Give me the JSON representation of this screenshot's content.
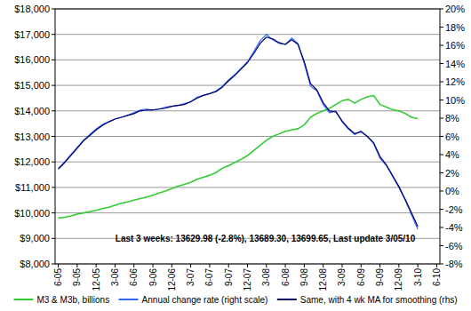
{
  "chart_data": {
    "type": "line",
    "categories": [
      "6-05",
      null,
      null,
      "9-05",
      null,
      null,
      "12-05",
      null,
      null,
      "3-06",
      null,
      null,
      "6-06",
      null,
      null,
      "9-06",
      null,
      null,
      "12-06",
      null,
      null,
      "3-07",
      null,
      null,
      "6-07",
      null,
      null,
      "9-07",
      null,
      null,
      "12-07",
      null,
      null,
      "3-08",
      null,
      null,
      "6-08",
      null,
      null,
      "9-08",
      null,
      null,
      "12-08",
      null,
      null,
      "3-09",
      null,
      null,
      "6-09",
      null,
      null,
      "9-09",
      null,
      null,
      "12-09",
      null,
      null,
      "3-10",
      null,
      null,
      "6-10"
    ],
    "series": [
      {
        "name": "M3 & M3b, billions",
        "color": "#33cc33",
        "values": [
          9800,
          9830,
          9880,
          9950,
          10000,
          10050,
          10100,
          10170,
          10220,
          10300,
          10380,
          10430,
          10500,
          10560,
          10620,
          10690,
          10780,
          10860,
          10950,
          11050,
          11120,
          11200,
          11320,
          11400,
          11480,
          11580,
          11750,
          11850,
          11980,
          12100,
          12250,
          12450,
          12650,
          12850,
          13000,
          13100,
          13200,
          13250,
          13300,
          13450,
          13750,
          13900,
          14000,
          14100,
          14250,
          14400,
          14450,
          14300,
          14450,
          14550,
          14600,
          14250,
          14150,
          14050,
          14000,
          13900,
          13750,
          13700,
          null,
          null,
          null
        ]
      },
      {
        "name": "Annual change rate (right scale)",
        "color": "#3366ff",
        "axis": "y2",
        "values": [
          2.5,
          3.2,
          4.0,
          4.8,
          5.6,
          6.2,
          6.8,
          7.3,
          7.6,
          7.9,
          8.1,
          8.3,
          8.6,
          8.9,
          9.0,
          8.9,
          9.0,
          9.2,
          9.3,
          9.4,
          9.6,
          9.8,
          10.3,
          10.5,
          10.7,
          11.0,
          11.5,
          12.2,
          12.8,
          13.5,
          14.2,
          15.3,
          16.5,
          17.2,
          16.6,
          16.2,
          16.1,
          16.8,
          16.2,
          14.0,
          11.5,
          11.0,
          9.5,
          8.6,
          8.8,
          7.6,
          6.8,
          6.2,
          6.6,
          6.0,
          5.2,
          3.6,
          2.8,
          1.6,
          0.4,
          -1.0,
          -2.6,
          -4.2,
          null,
          null,
          null
        ]
      },
      {
        "name": "Same, with 4 wk MA for smoothing (rhs)",
        "color": "#000066",
        "axis": "y2",
        "values": [
          2.4,
          3.1,
          3.9,
          4.7,
          5.5,
          6.1,
          6.7,
          7.2,
          7.6,
          7.9,
          8.1,
          8.3,
          8.5,
          8.8,
          8.9,
          8.9,
          9.0,
          9.1,
          9.3,
          9.4,
          9.5,
          9.8,
          10.2,
          10.5,
          10.7,
          10.9,
          11.4,
          12.1,
          12.7,
          13.4,
          14.1,
          15.1,
          16.2,
          16.9,
          16.7,
          16.3,
          16.1,
          16.6,
          16.1,
          14.2,
          11.8,
          11.1,
          9.7,
          8.8,
          8.7,
          7.7,
          6.9,
          6.3,
          6.5,
          6.0,
          5.3,
          3.8,
          2.9,
          1.7,
          0.5,
          -0.9,
          -2.4,
          -3.9,
          null,
          null,
          null
        ]
      }
    ],
    "ylim": [
      8000,
      18000
    ],
    "yticks": [
      {
        "value": 8000,
        "label": "$8,000"
      },
      {
        "value": 9000,
        "label": "$9,000"
      },
      {
        "value": 10000,
        "label": "$10,000"
      },
      {
        "value": 11000,
        "label": "$11,000"
      },
      {
        "value": 12000,
        "label": "$12,000"
      },
      {
        "value": 13000,
        "label": "$13,000"
      },
      {
        "value": 14000,
        "label": "$14,000"
      },
      {
        "value": 15000,
        "label": "$15,000"
      },
      {
        "value": 16000,
        "label": "$16,000"
      },
      {
        "value": 17000,
        "label": "$17,000"
      },
      {
        "value": 18000,
        "label": "$18,000"
      }
    ],
    "y2lim": [
      -8,
      20
    ],
    "y2ticks": [
      {
        "value": -8,
        "label": "-8%"
      },
      {
        "value": -6,
        "label": "-6%"
      },
      {
        "value": -4,
        "label": "-4%"
      },
      {
        "value": -2,
        "label": "-2%"
      },
      {
        "value": 0,
        "label": "0%"
      },
      {
        "value": 2,
        "label": "2%"
      },
      {
        "value": 4,
        "label": "4%"
      },
      {
        "value": 6,
        "label": "6%"
      },
      {
        "value": 8,
        "label": "8%"
      },
      {
        "value": 10,
        "label": "10%"
      },
      {
        "value": 12,
        "label": "12%"
      },
      {
        "value": 14,
        "label": "14%"
      },
      {
        "value": 16,
        "label": "16%"
      },
      {
        "value": 18,
        "label": "18%"
      },
      {
        "value": 20,
        "label": "20%"
      }
    ],
    "annotations": [
      "Last 3 weeks: 13629.98 (-2.8%), 13689.30, 13699.65, Last update 3/05/10"
    ],
    "grid": true,
    "legend": "bottom"
  }
}
